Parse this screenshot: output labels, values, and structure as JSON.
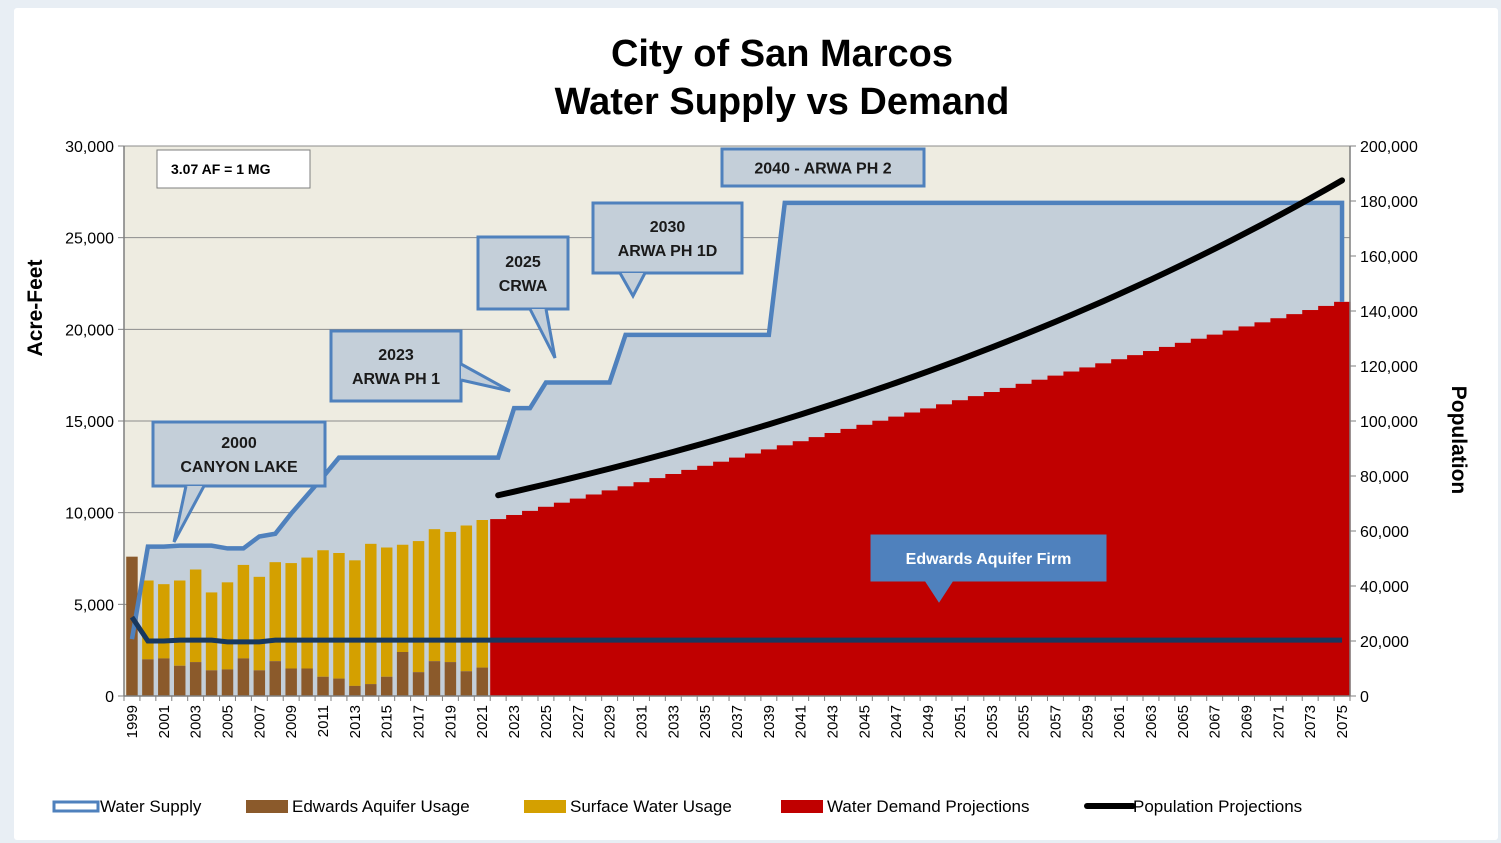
{
  "chart_data": {
    "type": "bar",
    "title": [
      "City of San Marcos",
      "Water Supply vs Demand"
    ],
    "ylabel": "Acre-Feet",
    "y2label": "Population",
    "ylim": [
      0,
      30000
    ],
    "y2lim": [
      0,
      200000
    ],
    "yticks": [
      0,
      5000,
      10000,
      15000,
      20000,
      25000,
      30000
    ],
    "yticks_labels": [
      "0",
      "5,000",
      "10,000",
      "15,000",
      "20,000",
      "25,000",
      "30,000"
    ],
    "y2ticks": [
      0,
      20000,
      40000,
      60000,
      80000,
      100000,
      120000,
      140000,
      160000,
      180000,
      200000
    ],
    "y2ticks_labels": [
      "0",
      "20,000",
      "40,000",
      "60,000",
      "80,000",
      "100,000",
      "120,000",
      "140,000",
      "160,000",
      "180,000",
      "200,000"
    ],
    "x_start": 1999,
    "x_end": 2075,
    "xtick_labels": [
      "1999",
      "2001",
      "2003",
      "2005",
      "2007",
      "2009",
      "2011",
      "2013",
      "2015",
      "2017",
      "2019",
      "2021",
      "2023",
      "2025",
      "2027",
      "2029",
      "2031",
      "2033",
      "2035",
      "2037",
      "2039",
      "2041",
      "2043",
      "2045",
      "2047",
      "2049",
      "2051",
      "2053",
      "2055",
      "2057",
      "2059",
      "2061",
      "2063",
      "2065",
      "2067",
      "2069",
      "2071",
      "2073",
      "2075"
    ],
    "grid": true,
    "legend_position": "bottom",
    "legend": [
      {
        "label": "Water Supply",
        "color": "#4f81bd"
      },
      {
        "label": "Edwards Aquifer Usage",
        "color": "#8b5a2b"
      },
      {
        "label": "Surface Water Usage",
        "color": "#d4a000"
      },
      {
        "label": "Water Demand Projections",
        "color": "#c00000"
      },
      {
        "label": "Population Projections",
        "color": "#000000"
      }
    ],
    "historical_years": [
      1999,
      2000,
      2001,
      2002,
      2003,
      2004,
      2005,
      2006,
      2007,
      2008,
      2009,
      2010,
      2011,
      2012,
      2013,
      2014,
      2015,
      2016,
      2017,
      2018,
      2019,
      2020,
      2021
    ],
    "edwards_aquifer_usage": [
      7600,
      2000,
      2050,
      1650,
      1850,
      1400,
      1450,
      2050,
      1400,
      1900,
      1500,
      1500,
      1050,
      950,
      550,
      650,
      1050,
      2400,
      1300,
      1900,
      1850,
      1350,
      1550
    ],
    "total_usage": [
      7600,
      6300,
      6100,
      6300,
      6900,
      5650,
      6200,
      7150,
      6500,
      7300,
      7250,
      7550,
      7950,
      7800,
      7400,
      8300,
      8100,
      8250,
      8450,
      9100,
      8950,
      9300,
      9600
    ],
    "demand_projection": {
      "years": [
        2022,
        2075
      ],
      "values": [
        9650,
        21500
      ]
    },
    "water_supply": {
      "years": [
        1999,
        2000,
        2001,
        2002,
        2003,
        2004,
        2005,
        2006,
        2007,
        2008,
        2009,
        2010,
        2011,
        2012,
        2013,
        2014,
        2015,
        2016,
        2017,
        2018,
        2019,
        2020,
        2021,
        2022,
        2023,
        2024,
        2025,
        2026,
        2027,
        2028,
        2029,
        2030,
        2031,
        2039,
        2040,
        2041,
        2075,
        2075
      ],
      "values": [
        3100,
        8150,
        8150,
        8200,
        8200,
        8200,
        8050,
        8050,
        8700,
        8850,
        9950,
        10950,
        11950,
        13000,
        13000,
        13000,
        13000,
        13000,
        13000,
        13000,
        13000,
        13000,
        13000,
        13000,
        15700,
        15700,
        17100,
        17100,
        17100,
        17100,
        17100,
        19700,
        19700,
        19700,
        26900,
        26900,
        26900,
        21500
      ]
    },
    "edwards_aquifer_firm": {
      "years": [
        1999,
        2000,
        2001,
        2002,
        2003,
        2004,
        2005,
        2006,
        2007,
        2008,
        2009,
        2010,
        2075
      ],
      "values": [
        4300,
        3000,
        3000,
        3050,
        3050,
        3050,
        2950,
        2950,
        2950,
        3050,
        3050,
        3050,
        3050
      ]
    },
    "population_projections": {
      "years": [
        2022,
        2075
      ],
      "values": [
        73000,
        187500
      ]
    },
    "annotations": [
      {
        "lines": [
          "2000",
          "CANYON LAKE"
        ]
      },
      {
        "lines": [
          "2023",
          "ARWA PH 1"
        ]
      },
      {
        "lines": [
          "2025",
          "CRWA"
        ]
      },
      {
        "lines": [
          "2030",
          "ARWA PH 1D"
        ]
      },
      {
        "lines": [
          "2040 - ARWA PH 2"
        ]
      },
      {
        "lines": [
          "Edwards Aquifer Firm"
        ]
      }
    ],
    "note": "3.07 AF = 1 MG"
  }
}
